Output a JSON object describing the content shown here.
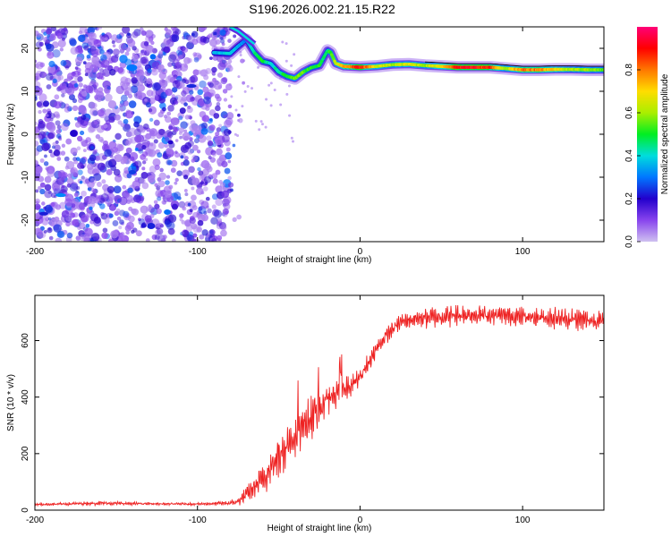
{
  "title": "S196.2026.002.21.15.R22",
  "colors": {
    "trace": "#ee2222",
    "ridge_line": "#000000",
    "colormap": [
      "#cfc0f0",
      "#8844ee",
      "#2200cc",
      "#0077ff",
      "#00dddd",
      "#00ee22",
      "#aaee00",
      "#ffdd00",
      "#ff7700",
      "#ff0000",
      "#ff0077"
    ]
  },
  "chart_data": [
    {
      "type": "heatmap",
      "xlabel": "Height of straight line (km)",
      "ylabel": "Frequency (Hz)",
      "xlim": [
        -200,
        150
      ],
      "ylim": [
        -25,
        25
      ],
      "x_ticks": [
        -200,
        -100,
        0,
        100
      ],
      "y_ticks": [
        -20,
        -10,
        0,
        10,
        20
      ],
      "colorbar": {
        "label": "Normalized spectral amplitude",
        "range": [
          0,
          1
        ],
        "ticks": [
          0.0,
          0.2,
          0.4,
          0.6,
          0.8
        ]
      },
      "noise_region": {
        "x_range": [
          -200,
          -80
        ],
        "y_range": [
          -25,
          25
        ],
        "amplitude_range": [
          0.05,
          0.3
        ]
      },
      "ridge": {
        "x": [
          -90,
          -80,
          -75,
          -70,
          -65,
          -60,
          -55,
          -50,
          -45,
          -40,
          -35,
          -30,
          -25,
          -20,
          -18,
          -15,
          -10,
          -5,
          0,
          10,
          20,
          30,
          40,
          50,
          60,
          70,
          80,
          90,
          100,
          110,
          120,
          130,
          140,
          150
        ],
        "y": [
          19,
          18.8,
          20.5,
          22,
          19,
          17,
          16.5,
          14.5,
          13.5,
          13,
          14.5,
          15.5,
          16,
          19.5,
          19,
          16.5,
          15.8,
          15.7,
          15.6,
          15.8,
          16.2,
          16.3,
          16.0,
          15.8,
          15.6,
          15.6,
          15.6,
          15.3,
          15.0,
          15.0,
          15.1,
          15.1,
          15.0,
          15.0
        ],
        "amp": [
          0.35,
          0.4,
          0.35,
          0.3,
          0.45,
          0.5,
          0.4,
          0.45,
          0.5,
          0.55,
          0.55,
          0.5,
          0.5,
          0.45,
          0.55,
          0.6,
          0.75,
          0.8,
          0.9,
          0.65,
          0.6,
          0.65,
          0.6,
          0.7,
          0.9,
          0.9,
          0.85,
          0.6,
          0.8,
          0.8,
          0.7,
          0.6,
          0.6,
          0.55
        ]
      },
      "upper_branch": {
        "x": [
          -80,
          -75,
          -70,
          -65
        ],
        "y": [
          25,
          24,
          22.5,
          21
        ]
      }
    },
    {
      "type": "line",
      "xlabel": "Height of straight line (km)",
      "ylabel": "SNR (10 * v/v)",
      "xlim": [
        -200,
        150
      ],
      "ylim": [
        0,
        760
      ],
      "x_ticks": [
        -200,
        -100,
        0,
        100
      ],
      "y_ticks": [
        0,
        200,
        400,
        600
      ],
      "series": [
        {
          "x": [
            -200,
            -180,
            -160,
            -140,
            -120,
            -100,
            -90,
            -80,
            -75,
            -70,
            -65,
            -60,
            -55,
            -50,
            -45,
            -40,
            -35,
            -30,
            -25,
            -20,
            -15,
            -10,
            -5,
            0,
            5,
            10,
            15,
            20,
            25,
            30,
            40,
            50,
            60,
            70,
            80,
            90,
            100,
            110,
            120,
            130,
            140,
            150
          ],
          "y": [
            20,
            22,
            25,
            23,
            22,
            22,
            23,
            25,
            30,
            55,
            80,
            110,
            150,
            190,
            230,
            270,
            300,
            330,
            360,
            390,
            410,
            420,
            440,
            470,
            520,
            570,
            610,
            640,
            665,
            675,
            680,
            685,
            690,
            692,
            690,
            688,
            685,
            683,
            680,
            676,
            672,
            670
          ],
          "ripple": [
            5,
            6,
            8,
            6,
            5,
            5,
            6,
            10,
            15,
            30,
            40,
            60,
            70,
            80,
            80,
            80,
            80,
            80,
            70,
            60,
            55,
            50,
            45,
            40,
            35,
            30,
            30,
            30,
            35,
            40,
            40,
            40,
            40,
            35,
            35,
            35,
            35,
            35,
            40,
            40,
            40,
            40
          ]
        }
      ]
    }
  ]
}
